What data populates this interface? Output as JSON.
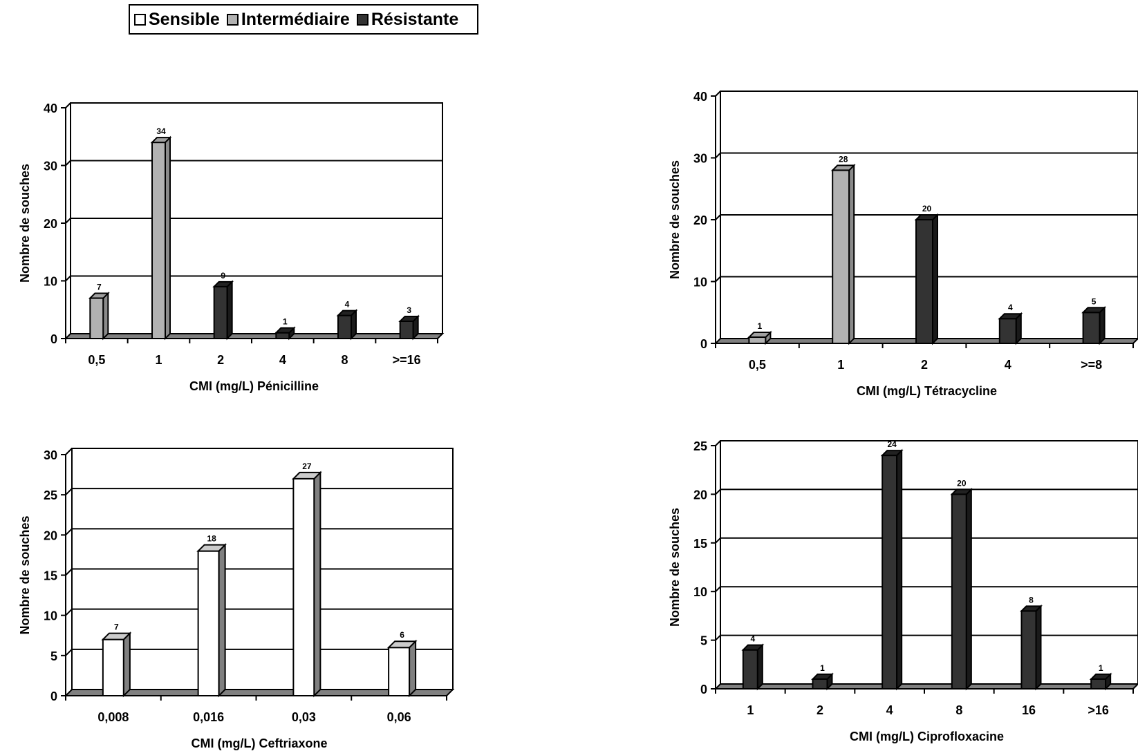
{
  "legend": {
    "items": [
      {
        "label": "Sensible",
        "color": "#ffffff"
      },
      {
        "label": "Intermédiaire",
        "color": "#b2b2b2"
      },
      {
        "label": "Résistante",
        "color": "#333333"
      }
    ]
  },
  "colors": {
    "sensible": "#ffffff",
    "intermediaire": "#b2b2b2",
    "resistante": "#333333",
    "floor": "#808080"
  },
  "chart_data": [
    {
      "type": "bar",
      "xlabel": "CMI (mg/L) Pénicilline",
      "ylabel": "Nombre de souches",
      "ylim": [
        0,
        40
      ],
      "yticks": [
        0,
        10,
        20,
        30,
        40
      ],
      "grid": true,
      "categories": [
        "0,5",
        "1",
        "2",
        "4",
        "8",
        ">=16"
      ],
      "values": [
        7,
        34,
        9,
        1,
        4,
        3
      ],
      "value_labels": [
        "7",
        "34",
        "9",
        "1",
        "4",
        "3"
      ],
      "classes": [
        "Intermédiaire",
        "Intermédiaire",
        "Résistante",
        "Résistante",
        "Résistante",
        "Résistante"
      ]
    },
    {
      "type": "bar",
      "xlabel": "CMI (mg/L) Tétracycline",
      "ylabel": "Nombre de souches",
      "ylim": [
        0,
        40
      ],
      "yticks": [
        0,
        10,
        20,
        30,
        40
      ],
      "grid": true,
      "categories": [
        "0,5",
        "1",
        "2",
        "4",
        ">=8"
      ],
      "values": [
        1,
        28,
        20,
        4,
        5
      ],
      "value_labels": [
        "1",
        "28",
        "20",
        "4",
        "5"
      ],
      "classes": [
        "Intermédiaire",
        "Intermédiaire",
        "Résistante",
        "Résistante",
        "Résistante"
      ]
    },
    {
      "type": "bar",
      "xlabel": "CMI (mg/L) Ceftriaxone",
      "ylabel": "Nombre de souches",
      "ylim": [
        0,
        30
      ],
      "yticks": [
        0,
        5,
        10,
        15,
        20,
        25,
        30
      ],
      "grid": true,
      "categories": [
        "0,008",
        "0,016",
        "0,03",
        "0,06"
      ],
      "values": [
        7,
        18,
        27,
        6
      ],
      "value_labels": [
        "7",
        "18",
        "27",
        "6"
      ],
      "classes": [
        "Sensible",
        "Sensible",
        "Sensible",
        "Sensible"
      ]
    },
    {
      "type": "bar",
      "xlabel": "CMI (mg/L) Ciprofloxacine",
      "ylabel": "Nombre de souches",
      "ylim": [
        0,
        25
      ],
      "yticks": [
        0,
        5,
        10,
        15,
        20,
        25
      ],
      "grid": true,
      "categories": [
        "1",
        "2",
        "4",
        "8",
        "16",
        ">16"
      ],
      "values": [
        4,
        1,
        24,
        20,
        8,
        1
      ],
      "value_labels": [
        "4",
        "1",
        "24",
        "20",
        "8",
        "1"
      ],
      "classes": [
        "Résistante",
        "Résistante",
        "Résistante",
        "Résistante",
        "Résistante",
        "Résistante"
      ]
    }
  ]
}
